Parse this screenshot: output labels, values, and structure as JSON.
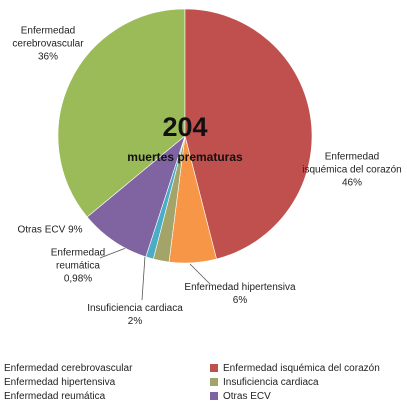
{
  "chart_data": {
    "type": "pie",
    "categories": [
      "Enfermedad cerebrovascular",
      "Enfermedad isquémica del corazón",
      "Enfermedad hipertensiva",
      "Insuficiencia cardiaca",
      "Enfermedad reumática",
      "Otras ECV"
    ],
    "values": [
      36,
      46,
      6,
      2,
      0.98,
      9
    ],
    "value_labels": [
      "36%",
      "46%",
      "6%",
      "2%",
      "0,98%",
      "9%"
    ],
    "colors": [
      "#9bbb59",
      "#c0504d",
      "#f79646",
      "#a2a46a",
      "#4bacc6",
      "#8064a2"
    ],
    "center_value": 204,
    "center_text": "muertes prematuras",
    "legend": "bottom"
  }
}
